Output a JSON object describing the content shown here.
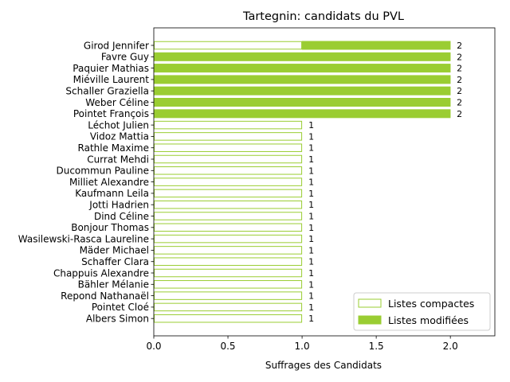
{
  "chart_data": {
    "type": "bar",
    "orientation": "horizontal",
    "title": "Tartegnin: candidats du PVL",
    "xlabel": "Suffrages des Candidats",
    "ylabel": "",
    "xlim": [
      0,
      2.3
    ],
    "xticks": [
      "0.0",
      "0.5",
      "1.0",
      "1.5",
      "2.0"
    ],
    "categories": [
      "Girod Jennifer",
      "Favre Guy",
      "Paquier Mathias",
      "Miéville Laurent",
      "Schaller Graziella",
      "Weber Céline",
      "Pointet François",
      "Léchot Julien",
      "Vidoz Mattia",
      "Rathle Maxime",
      "Currat Mehdi",
      "Ducommun Pauline",
      "Milliet Alexandre",
      "Kaufmann Leila",
      "Jotti Hadrien",
      "Dind Céline",
      "Bonjour Thomas",
      "Wasilewski-Rasca Laureline",
      "Mäder Michael",
      "Schaffer Clara",
      "Chappuis Alexandre",
      "Bähler Mélanie",
      "Repond Nathanaël",
      "Pointet Cloé",
      "Albers Simon"
    ],
    "series": [
      {
        "name": "Listes compactes",
        "style": "outline",
        "values": [
          1,
          0,
          0,
          0,
          0,
          0,
          0,
          1,
          1,
          1,
          1,
          1,
          1,
          1,
          1,
          1,
          1,
          1,
          1,
          1,
          1,
          1,
          1,
          1,
          1
        ]
      },
      {
        "name": "Listes modifiées",
        "style": "filled",
        "values": [
          1,
          2,
          2,
          2,
          2,
          2,
          2,
          0,
          0,
          0,
          0,
          0,
          0,
          0,
          0,
          0,
          0,
          0,
          0,
          0,
          0,
          0,
          0,
          0,
          0
        ]
      }
    ],
    "totals": [
      "2",
      "2",
      "2",
      "2",
      "2",
      "2",
      "2",
      "1",
      "1",
      "1",
      "1",
      "1",
      "1",
      "1",
      "1",
      "1",
      "1",
      "1",
      "1",
      "1",
      "1",
      "1",
      "1",
      "1",
      "1"
    ],
    "colors": {
      "bar": "#9acd32",
      "axis": "#000000"
    },
    "legend": {
      "position": "bottom-right"
    },
    "grid": false
  }
}
